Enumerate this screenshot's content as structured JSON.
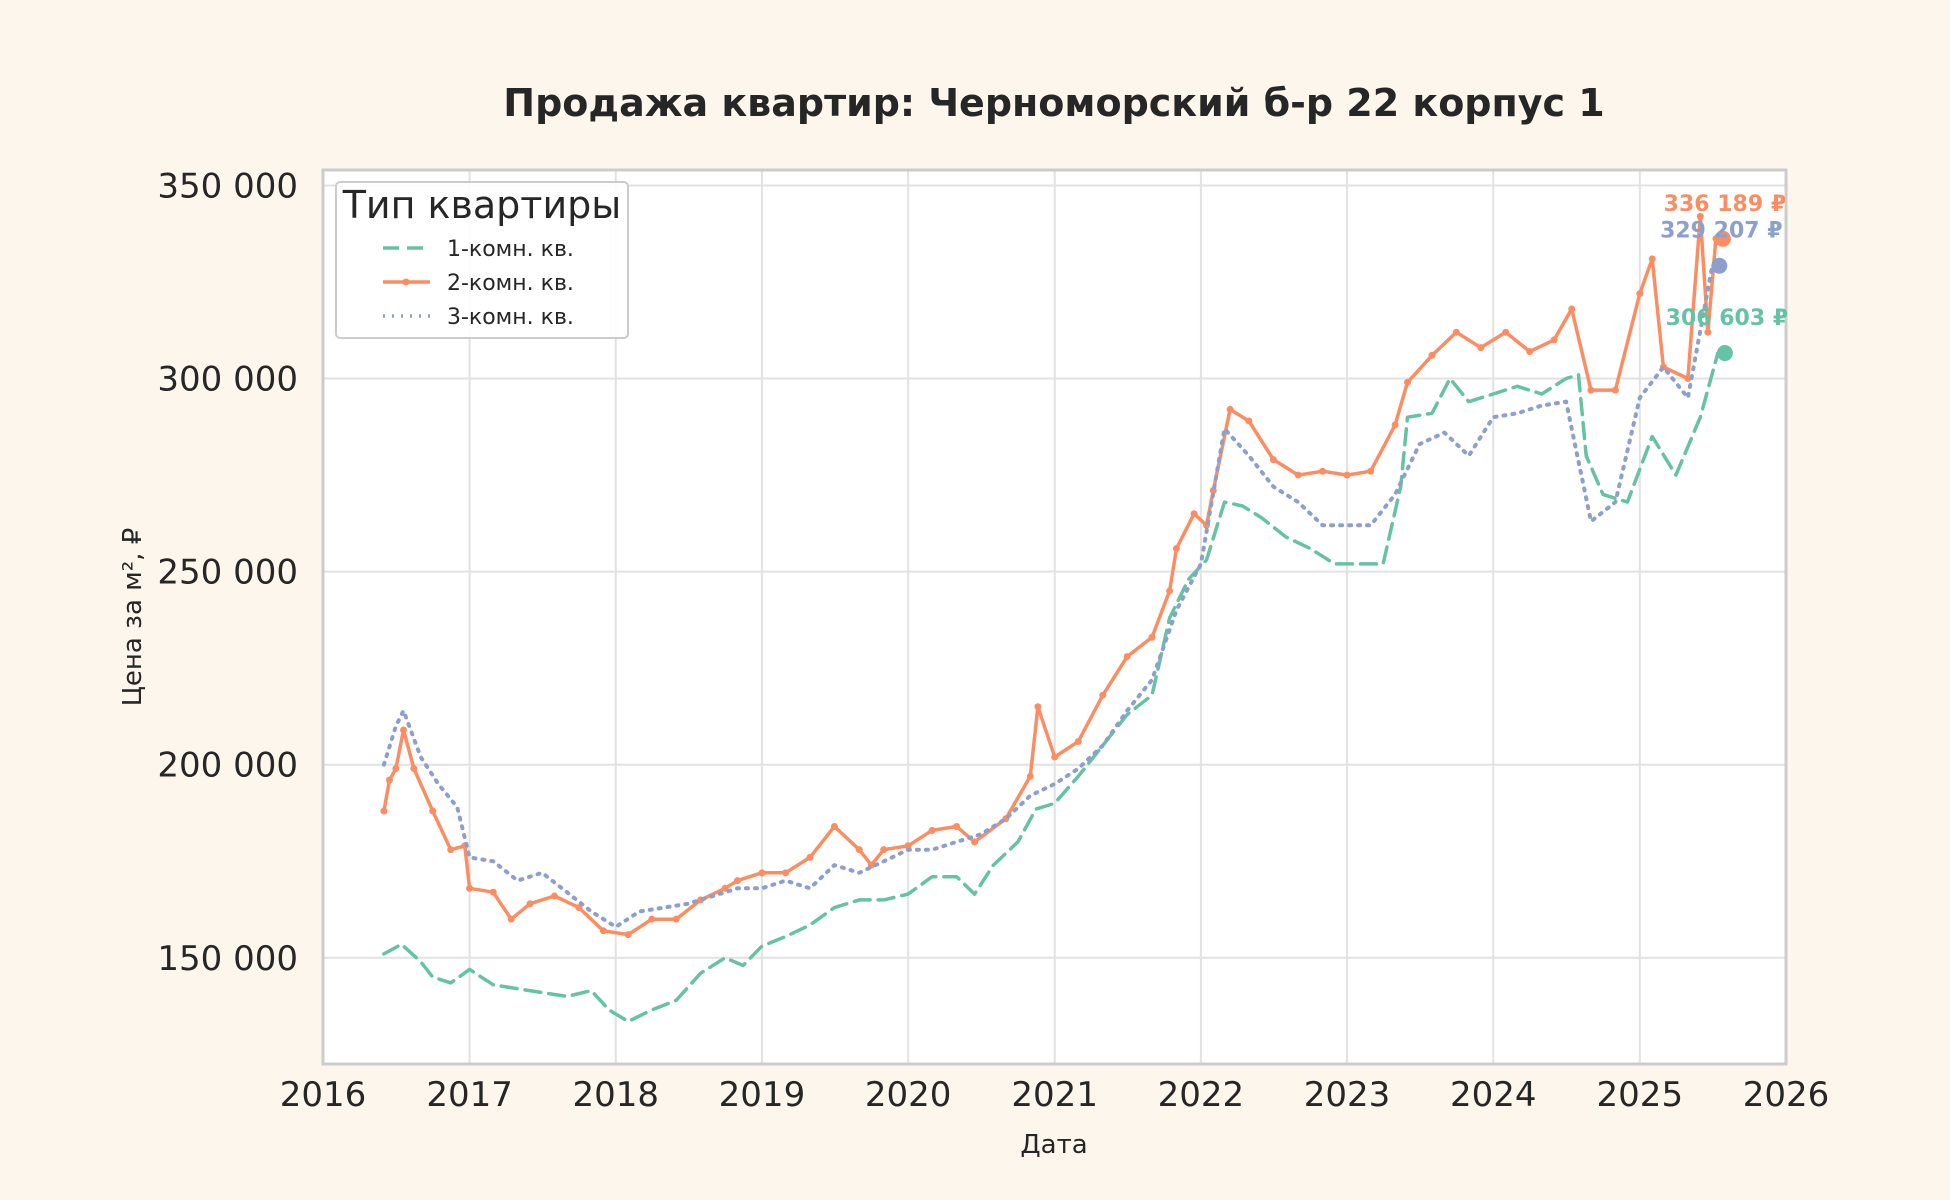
{
  "chart_data": {
    "type": "line",
    "title": "Продажа квартир: Черноморский б-р 22 корпус 1",
    "xlabel": "Дата",
    "ylabel": "Цена за м², ₽",
    "xlim": [
      "2016-01-01",
      "2026-01-01"
    ],
    "ylim": [
      122500,
      354000
    ],
    "x_ticks": [
      "2016",
      "2017",
      "2018",
      "2019",
      "2020",
      "2021",
      "2022",
      "2023",
      "2024",
      "2025",
      "2026"
    ],
    "y_ticks": [
      150000,
      200000,
      250000,
      300000,
      350000
    ],
    "y_tick_labels": [
      "150 000",
      "200 000",
      "250 000",
      "300 000",
      "350 000"
    ],
    "grid": true,
    "legend": {
      "title": "Тип квартиры",
      "placement": "top-left"
    },
    "series": [
      {
        "name": "1-комн. кв.",
        "color": "#66c2a5",
        "style": "dashed",
        "end_label": "306 603 ₽",
        "end_value": 306603,
        "points": [
          [
            "2016-06-01",
            151000
          ],
          [
            "2016-07-15",
            153500
          ],
          [
            "2016-09-01",
            149000
          ],
          [
            "2016-10-01",
            145000
          ],
          [
            "2016-11-15",
            143500
          ],
          [
            "2017-01-01",
            147000
          ],
          [
            "2017-03-01",
            143000
          ],
          [
            "2017-05-01",
            142000
          ],
          [
            "2017-07-01",
            141000
          ],
          [
            "2017-09-01",
            140000
          ],
          [
            "2017-11-01",
            141500
          ],
          [
            "2017-12-15",
            136500
          ],
          [
            "2018-02-01",
            133500
          ],
          [
            "2018-04-01",
            136500
          ],
          [
            "2018-06-01",
            139000
          ],
          [
            "2018-08-01",
            146000
          ],
          [
            "2018-10-01",
            150000
          ],
          [
            "2018-11-15",
            148000
          ],
          [
            "2019-01-01",
            153000
          ],
          [
            "2019-03-01",
            155500
          ],
          [
            "2019-05-01",
            158500
          ],
          [
            "2019-07-01",
            163000
          ],
          [
            "2019-09-01",
            165000
          ],
          [
            "2019-11-01",
            165000
          ],
          [
            "2020-01-01",
            166500
          ],
          [
            "2020-03-01",
            171000
          ],
          [
            "2020-05-01",
            171000
          ],
          [
            "2020-06-15",
            166500
          ],
          [
            "2020-08-01",
            174000
          ],
          [
            "2020-10-01",
            180000
          ],
          [
            "2020-11-15",
            188500
          ],
          [
            "2021-01-01",
            190000
          ],
          [
            "2021-03-01",
            197000
          ],
          [
            "2021-05-01",
            205000
          ],
          [
            "2021-07-01",
            213000
          ],
          [
            "2021-09-01",
            218000
          ],
          [
            "2021-10-15",
            238000
          ],
          [
            "2021-12-01",
            248000
          ],
          [
            "2022-01-15",
            253000
          ],
          [
            "2022-03-01",
            268000
          ],
          [
            "2022-04-15",
            267000
          ],
          [
            "2022-06-01",
            264000
          ],
          [
            "2022-08-01",
            259000
          ],
          [
            "2022-10-01",
            256000
          ],
          [
            "2022-12-01",
            252000
          ],
          [
            "2023-02-01",
            252000
          ],
          [
            "2023-04-01",
            252000
          ],
          [
            "2023-05-15",
            272000
          ],
          [
            "2023-06-01",
            290000
          ],
          [
            "2023-08-01",
            291000
          ],
          [
            "2023-09-15",
            300000
          ],
          [
            "2023-11-01",
            294000
          ],
          [
            "2024-01-01",
            296000
          ],
          [
            "2024-03-01",
            298000
          ],
          [
            "2024-05-01",
            296000
          ],
          [
            "2024-07-01",
            300000
          ],
          [
            "2024-08-01",
            301000
          ],
          [
            "2024-08-20",
            280000
          ],
          [
            "2024-10-01",
            270000
          ],
          [
            "2024-12-01",
            268000
          ],
          [
            "2025-02-01",
            285000
          ],
          [
            "2025-04-01",
            275000
          ],
          [
            "2025-06-01",
            290000
          ],
          [
            "2025-07-15",
            306603
          ]
        ]
      },
      {
        "name": "2-комн. кв.",
        "color": "#fc8d62",
        "style": "solid",
        "end_label": "336 189 ₽",
        "end_value": 336189,
        "points": [
          [
            "2016-06-01",
            188000
          ],
          [
            "2016-06-15",
            196000
          ],
          [
            "2016-07-01",
            199000
          ],
          [
            "2016-07-20",
            209000
          ],
          [
            "2016-08-15",
            199000
          ],
          [
            "2016-10-01",
            188000
          ],
          [
            "2016-11-15",
            178000
          ],
          [
            "2016-12-20",
            179000
          ],
          [
            "2017-01-01",
            168000
          ],
          [
            "2017-03-01",
            167000
          ],
          [
            "2017-04-15",
            160000
          ],
          [
            "2017-06-01",
            164000
          ],
          [
            "2017-08-01",
            166000
          ],
          [
            "2017-10-01",
            163000
          ],
          [
            "2017-12-01",
            157000
          ],
          [
            "2018-02-01",
            156000
          ],
          [
            "2018-04-01",
            160000
          ],
          [
            "2018-06-01",
            160000
          ],
          [
            "2018-08-01",
            165000
          ],
          [
            "2018-10-01",
            168000
          ],
          [
            "2018-11-01",
            170000
          ],
          [
            "2019-01-01",
            172000
          ],
          [
            "2019-03-01",
            172000
          ],
          [
            "2019-05-01",
            176000
          ],
          [
            "2019-07-01",
            184000
          ],
          [
            "2019-09-01",
            178000
          ],
          [
            "2019-10-01",
            174000
          ],
          [
            "2019-11-01",
            178000
          ],
          [
            "2020-01-01",
            179000
          ],
          [
            "2020-03-01",
            183000
          ],
          [
            "2020-05-01",
            184000
          ],
          [
            "2020-06-15",
            180000
          ],
          [
            "2020-09-01",
            186000
          ],
          [
            "2020-11-01",
            197000
          ],
          [
            "2020-11-20",
            215000
          ],
          [
            "2021-01-01",
            202000
          ],
          [
            "2021-03-01",
            206000
          ],
          [
            "2021-05-01",
            218000
          ],
          [
            "2021-07-01",
            228000
          ],
          [
            "2021-09-01",
            233000
          ],
          [
            "2021-10-15",
            245000
          ],
          [
            "2021-11-01",
            256000
          ],
          [
            "2021-12-15",
            265000
          ],
          [
            "2022-01-15",
            262000
          ],
          [
            "2022-02-01",
            271000
          ],
          [
            "2022-03-15",
            292000
          ],
          [
            "2022-05-01",
            289000
          ],
          [
            "2022-07-01",
            279000
          ],
          [
            "2022-09-01",
            275000
          ],
          [
            "2022-11-01",
            276000
          ],
          [
            "2023-01-01",
            275000
          ],
          [
            "2023-03-01",
            276000
          ],
          [
            "2023-05-01",
            288000
          ],
          [
            "2023-06-01",
            299000
          ],
          [
            "2023-08-01",
            306000
          ],
          [
            "2023-10-01",
            312000
          ],
          [
            "2023-12-01",
            308000
          ],
          [
            "2024-02-01",
            312000
          ],
          [
            "2024-04-01",
            307000
          ],
          [
            "2024-06-01",
            310000
          ],
          [
            "2024-07-15",
            318000
          ],
          [
            "2024-09-01",
            297000
          ],
          [
            "2024-11-01",
            297000
          ],
          [
            "2025-01-01",
            322000
          ],
          [
            "2025-02-01",
            331000
          ],
          [
            "2025-03-01",
            303000
          ],
          [
            "2025-05-01",
            300000
          ],
          [
            "2025-06-01",
            342000
          ],
          [
            "2025-06-20",
            312000
          ],
          [
            "2025-07-10",
            336189
          ]
        ]
      },
      {
        "name": "3-комн. кв.",
        "color": "#8da0cb",
        "style": "dotted",
        "end_label": "329 207 ₽",
        "end_value": 329207,
        "points": [
          [
            "2016-06-01",
            200000
          ],
          [
            "2016-07-01",
            210000
          ],
          [
            "2016-07-20",
            214000
          ],
          [
            "2016-09-01",
            202000
          ],
          [
            "2016-10-15",
            195000
          ],
          [
            "2016-12-01",
            189000
          ],
          [
            "2017-01-01",
            176000
          ],
          [
            "2017-03-01",
            175000
          ],
          [
            "2017-05-01",
            170000
          ],
          [
            "2017-07-01",
            172000
          ],
          [
            "2017-09-01",
            167000
          ],
          [
            "2017-11-01",
            162000
          ],
          [
            "2018-01-01",
            158000
          ],
          [
            "2018-03-01",
            162000
          ],
          [
            "2018-05-01",
            163000
          ],
          [
            "2018-07-01",
            164000
          ],
          [
            "2018-09-01",
            166000
          ],
          [
            "2018-11-01",
            168000
          ],
          [
            "2019-01-01",
            168000
          ],
          [
            "2019-03-01",
            170000
          ],
          [
            "2019-05-01",
            168000
          ],
          [
            "2019-07-01",
            174000
          ],
          [
            "2019-09-01",
            172000
          ],
          [
            "2019-11-01",
            175000
          ],
          [
            "2020-01-01",
            178000
          ],
          [
            "2020-03-01",
            178000
          ],
          [
            "2020-05-01",
            180000
          ],
          [
            "2020-07-01",
            182000
          ],
          [
            "2020-09-01",
            186000
          ],
          [
            "2020-11-01",
            192000
          ],
          [
            "2021-01-01",
            195000
          ],
          [
            "2021-03-01",
            199000
          ],
          [
            "2021-05-01",
            205000
          ],
          [
            "2021-07-01",
            214000
          ],
          [
            "2021-09-01",
            222000
          ],
          [
            "2021-11-01",
            240000
          ],
          [
            "2022-01-01",
            252000
          ],
          [
            "2022-03-01",
            287000
          ],
          [
            "2022-05-01",
            280000
          ],
          [
            "2022-07-01",
            272000
          ],
          [
            "2022-09-01",
            268000
          ],
          [
            "2022-11-01",
            262000
          ],
          [
            "2023-01-01",
            262000
          ],
          [
            "2023-03-01",
            262000
          ],
          [
            "2023-05-01",
            270000
          ],
          [
            "2023-07-01",
            283000
          ],
          [
            "2023-09-01",
            286000
          ],
          [
            "2023-11-01",
            280000
          ],
          [
            "2024-01-01",
            290000
          ],
          [
            "2024-03-01",
            291000
          ],
          [
            "2024-05-01",
            293000
          ],
          [
            "2024-07-01",
            294000
          ],
          [
            "2024-09-01",
            263000
          ],
          [
            "2024-11-01",
            268000
          ],
          [
            "2025-01-01",
            295000
          ],
          [
            "2025-03-01",
            303000
          ],
          [
            "2025-05-01",
            295000
          ],
          [
            "2025-07-01",
            329207
          ]
        ]
      }
    ]
  }
}
